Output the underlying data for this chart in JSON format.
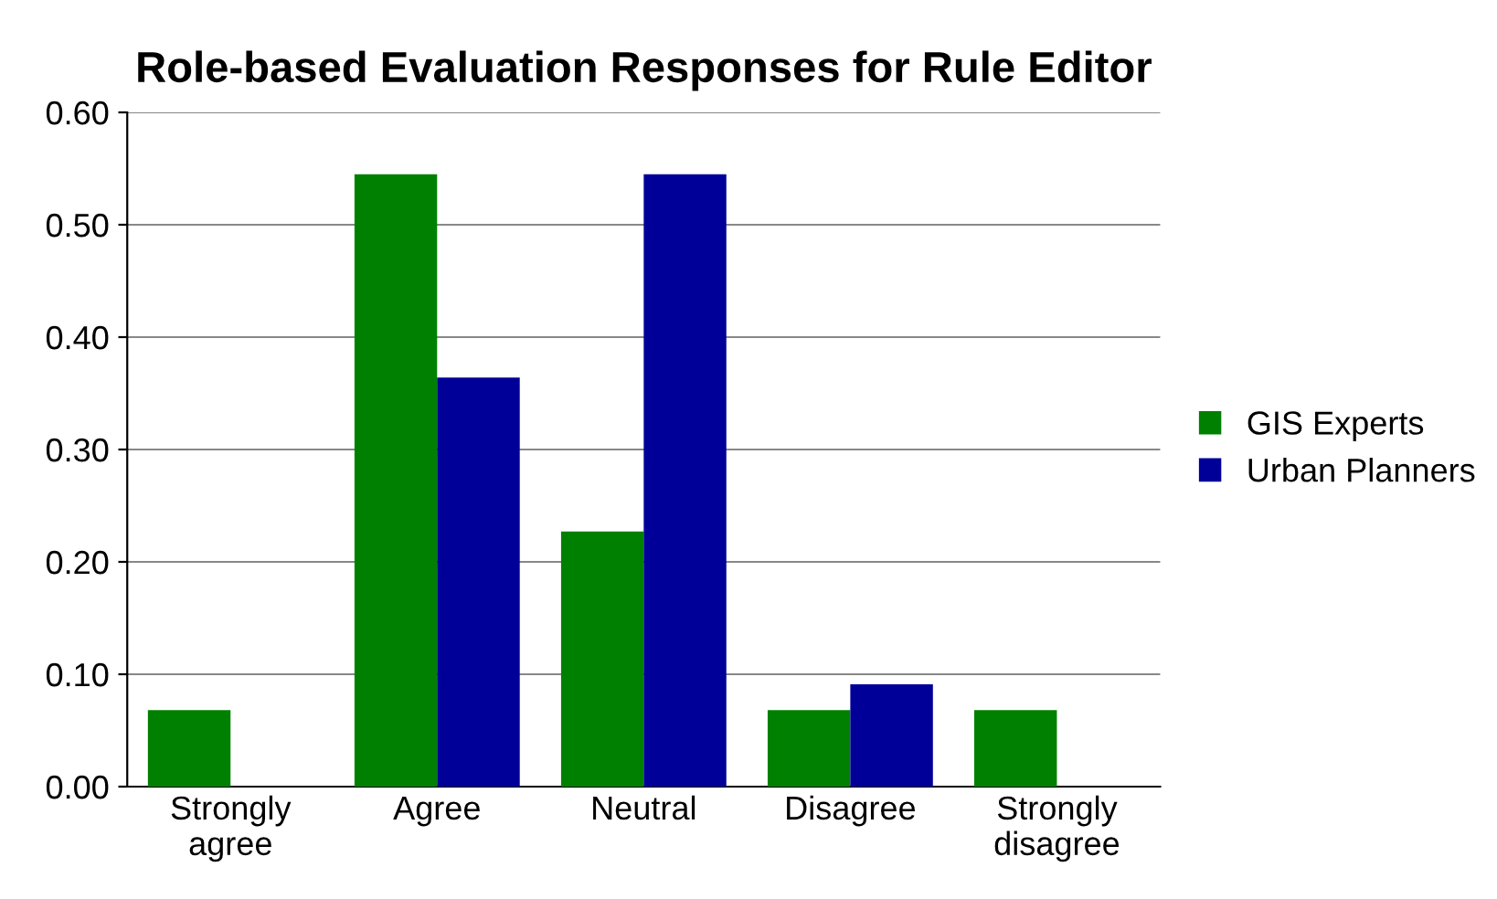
{
  "chart_data": {
    "type": "bar",
    "title": "Role-based Evaluation Responses for Rule Editor",
    "categories": [
      "Strongly\nagree",
      "Agree",
      "Neutral",
      "Disagree",
      "Strongly\ndisagree"
    ],
    "series": [
      {
        "name": "GIS Experts",
        "color": "#008000",
        "values": [
          0.068,
          0.545,
          0.227,
          0.068,
          0.068
        ]
      },
      {
        "name": "Urban Planners",
        "color": "#000099",
        "values": [
          0,
          0.364,
          0.545,
          0.091,
          0
        ]
      }
    ],
    "ylim": [
      0,
      0.6
    ],
    "yticks": [
      {
        "value": 0,
        "label": "0.00"
      },
      {
        "value": 0.1,
        "label": "0.10"
      },
      {
        "value": 0.2,
        "label": "0.20"
      },
      {
        "value": 0.3,
        "label": "0.30"
      },
      {
        "value": 0.4,
        "label": "0.40"
      },
      {
        "value": 0.5,
        "label": "0.50"
      },
      {
        "value": 0.6,
        "label": "0.60"
      }
    ],
    "grid": "y",
    "legend": "right"
  }
}
